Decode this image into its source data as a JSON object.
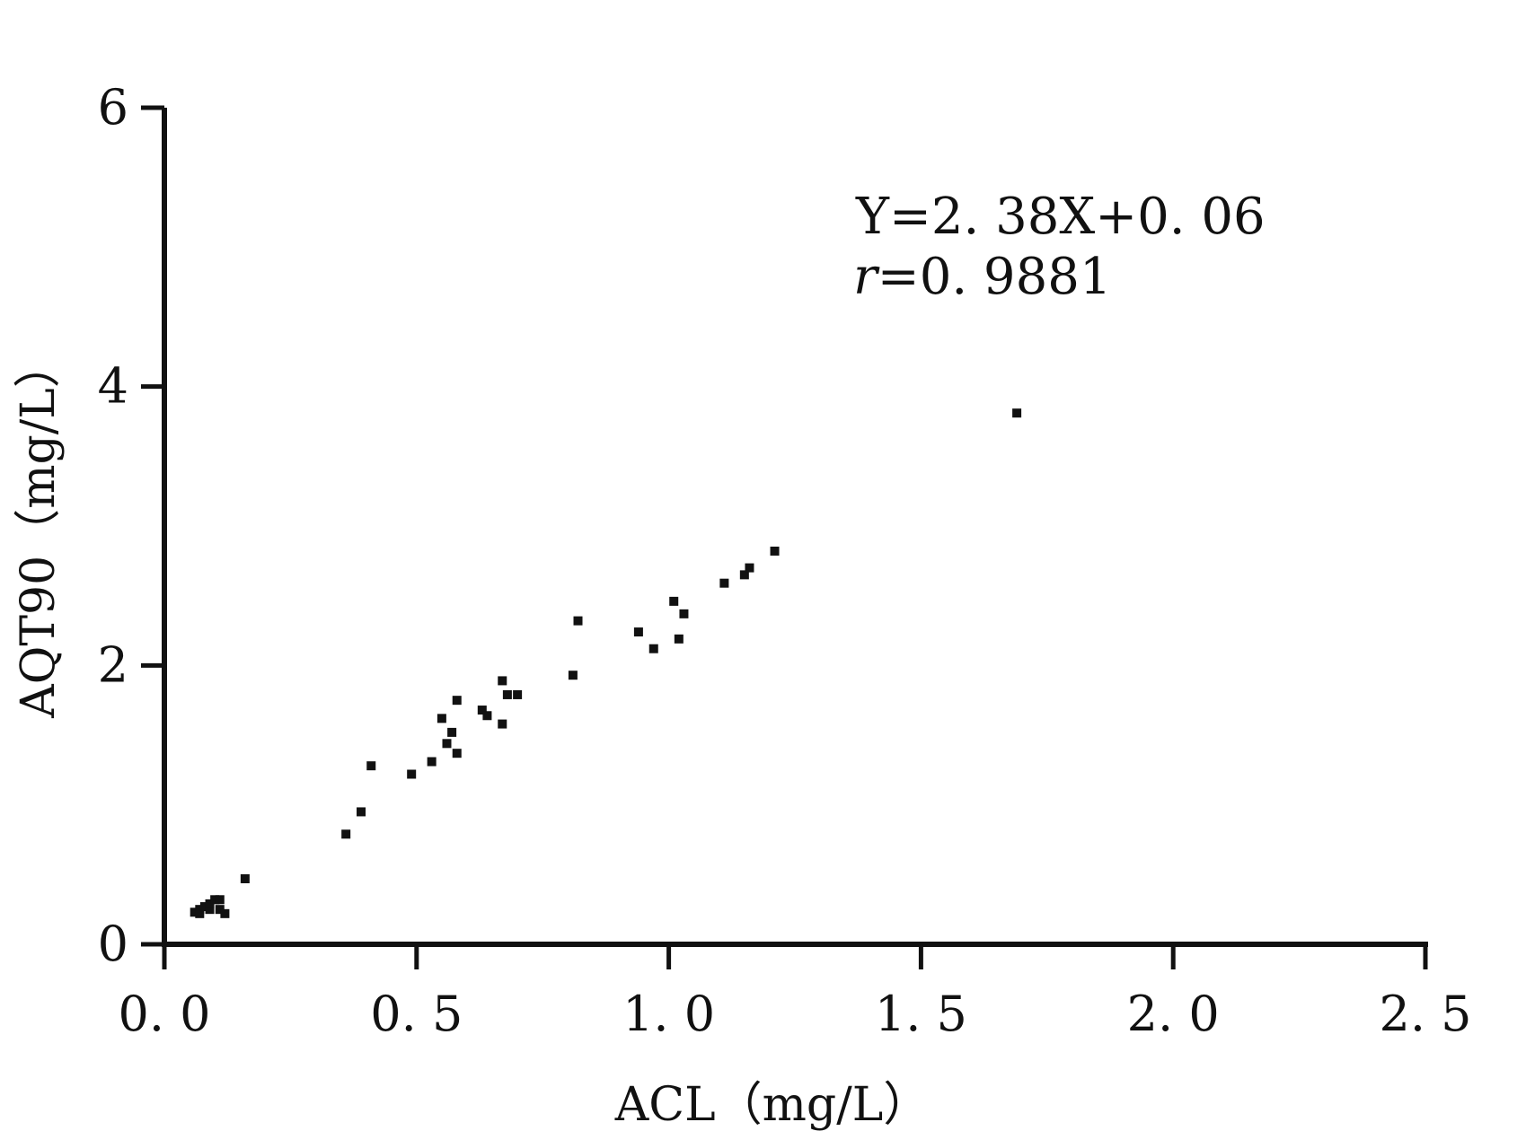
{
  "chart_data": {
    "type": "scatter",
    "xlabel": "ACL（mg/L）",
    "ylabel": "AQT90（mg/L）",
    "xlim": [
      0.0,
      2.5
    ],
    "ylim": [
      0,
      6
    ],
    "xticks": [
      "0. 0",
      "0. 5",
      "1. 0",
      "1. 5",
      "2. 0",
      "2. 5"
    ],
    "xtick_values": [
      0.0,
      0.5,
      1.0,
      1.5,
      2.0,
      2.5
    ],
    "yticks": [
      "0",
      "2",
      "4",
      "6"
    ],
    "ytick_values": [
      0,
      2,
      4,
      6
    ],
    "grid": false,
    "annotation": {
      "equation": "Y=2. 38X+0. 06",
      "r_label": "r",
      "r_value": "=0. 9881"
    },
    "points": [
      {
        "x": 0.06,
        "y": 0.23
      },
      {
        "x": 0.07,
        "y": 0.25
      },
      {
        "x": 0.07,
        "y": 0.22
      },
      {
        "x": 0.08,
        "y": 0.27
      },
      {
        "x": 0.09,
        "y": 0.25
      },
      {
        "x": 0.09,
        "y": 0.29
      },
      {
        "x": 0.1,
        "y": 0.32
      },
      {
        "x": 0.11,
        "y": 0.32
      },
      {
        "x": 0.11,
        "y": 0.25
      },
      {
        "x": 0.12,
        "y": 0.22
      },
      {
        "x": 0.16,
        "y": 0.47
      },
      {
        "x": 0.36,
        "y": 0.79
      },
      {
        "x": 0.39,
        "y": 0.95
      },
      {
        "x": 0.41,
        "y": 1.28
      },
      {
        "x": 0.49,
        "y": 1.22
      },
      {
        "x": 0.53,
        "y": 1.31
      },
      {
        "x": 0.55,
        "y": 1.62
      },
      {
        "x": 0.56,
        "y": 1.44
      },
      {
        "x": 0.57,
        "y": 1.52
      },
      {
        "x": 0.58,
        "y": 1.37
      },
      {
        "x": 0.58,
        "y": 1.75
      },
      {
        "x": 0.63,
        "y": 1.68
      },
      {
        "x": 0.64,
        "y": 1.64
      },
      {
        "x": 0.67,
        "y": 1.89
      },
      {
        "x": 0.67,
        "y": 1.58
      },
      {
        "x": 0.68,
        "y": 1.79
      },
      {
        "x": 0.7,
        "y": 1.79
      },
      {
        "x": 0.81,
        "y": 1.93
      },
      {
        "x": 0.82,
        "y": 2.32
      },
      {
        "x": 0.94,
        "y": 2.24
      },
      {
        "x": 0.97,
        "y": 2.12
      },
      {
        "x": 1.01,
        "y": 2.46
      },
      {
        "x": 1.02,
        "y": 2.19
      },
      {
        "x": 1.03,
        "y": 2.37
      },
      {
        "x": 1.11,
        "y": 2.59
      },
      {
        "x": 1.15,
        "y": 2.65
      },
      {
        "x": 1.16,
        "y": 2.7
      },
      {
        "x": 1.21,
        "y": 2.82
      },
      {
        "x": 1.69,
        "y": 3.81
      }
    ],
    "marker_color": "#111111",
    "axis_color": "#111111"
  }
}
